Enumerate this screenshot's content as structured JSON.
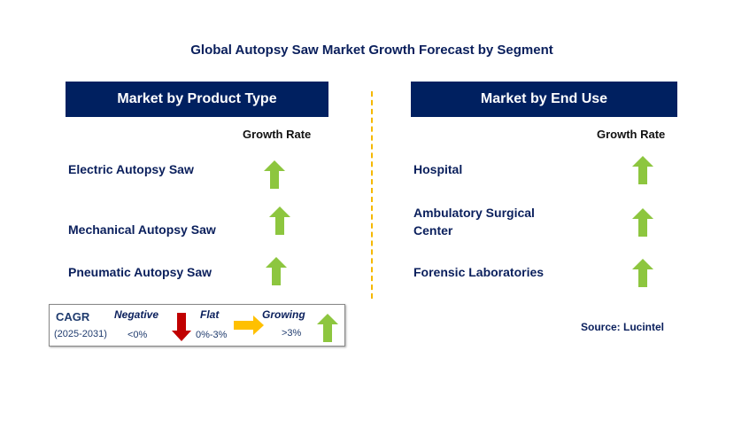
{
  "title": "Global Autopsy Saw Market Growth Forecast by Segment",
  "left": {
    "header": "Market by Product Type",
    "growth_label": "Growth Rate",
    "items": [
      {
        "label": "Electric Autopsy Saw",
        "trend": "growing"
      },
      {
        "label": "Mechanical Autopsy Saw",
        "trend": "growing"
      },
      {
        "label": "Pneumatic Autopsy Saw",
        "trend": "growing"
      }
    ]
  },
  "right": {
    "header": "Market by End Use",
    "growth_label": "Growth Rate",
    "items": [
      {
        "label": "Hospital",
        "trend": "growing"
      },
      {
        "label": "Ambulatory Surgical Center",
        "trend": "growing"
      },
      {
        "label": "Forensic Laboratories",
        "trend": "growing"
      }
    ]
  },
  "legend": {
    "cagr": "CAGR",
    "period": "(2025-2031)",
    "negative": "Negative",
    "negative_range": "<0%",
    "flat": "Flat",
    "flat_range": "0%-3%",
    "growing": "Growing",
    "growing_range": ">3%"
  },
  "source": "Source: Lucintel",
  "colors": {
    "navy": "#002060",
    "green": "#8dc63f",
    "red": "#c00000",
    "yellow": "#ffc000",
    "divider": "#f5b800"
  }
}
